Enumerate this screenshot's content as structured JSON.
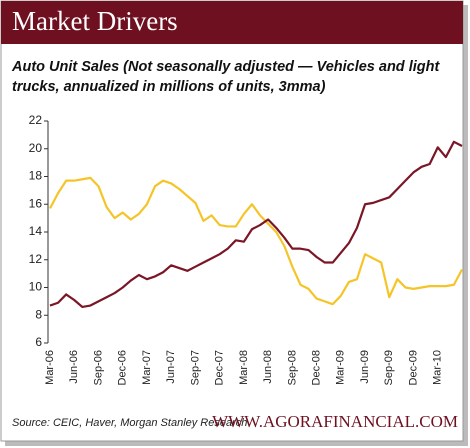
{
  "header": "Market Drivers",
  "chart_data": {
    "type": "line",
    "title": "Auto Unit Sales (Not seasonally adjusted — Vehicles and light trucks, annualized in millions of units, 3mma)",
    "source": "Source: CEIC, Haver, Morgan Stanley Research",
    "website": "WWW.AGORAFINANCIAL.COM",
    "categories": [
      "Mar-06",
      null,
      null,
      "Jun-06",
      null,
      null,
      "Sep-06",
      null,
      null,
      "Dec-06",
      null,
      null,
      "Mar-07",
      null,
      null,
      "Jun-07",
      null,
      null,
      "Sep-07",
      null,
      null,
      "Dec-07",
      null,
      null,
      "Mar-08",
      null,
      null,
      "Jun-08",
      null,
      null,
      "Sep-08",
      null,
      null,
      "Dec-08",
      null,
      null,
      "Mar-09",
      null,
      null,
      "Jun-09",
      null,
      null,
      "Sep-09",
      null,
      null,
      "Dec-09",
      null,
      null,
      "Mar-10",
      null,
      null,
      null
    ],
    "series": [
      {
        "color": "#f5c428",
        "values": [
          15.7,
          16.8,
          17.7,
          17.7,
          17.8,
          17.9,
          17.3,
          15.8,
          15.0,
          15.4,
          14.9,
          15.3,
          16.0,
          17.3,
          17.7,
          17.5,
          17.1,
          16.6,
          16.1,
          14.8,
          15.2,
          14.5,
          14.4,
          14.4,
          15.3,
          16.0,
          15.2,
          14.6,
          14.0,
          13.0,
          11.5,
          10.2,
          9.9,
          9.2,
          9.0,
          8.8,
          9.4,
          10.4,
          10.6,
          12.4,
          12.1,
          11.8,
          9.3,
          10.6,
          10.0,
          9.9,
          10.0,
          10.1,
          10.1,
          10.1,
          10.2,
          11.3
        ]
      },
      {
        "color": "#7a1626",
        "values": [
          8.7,
          8.9,
          9.5,
          9.1,
          8.6,
          8.7,
          9.0,
          9.3,
          9.6,
          10.0,
          10.5,
          10.9,
          10.6,
          10.8,
          11.1,
          11.6,
          11.4,
          11.2,
          11.5,
          11.8,
          12.1,
          12.4,
          12.8,
          13.4,
          13.3,
          14.2,
          14.5,
          14.9,
          14.3,
          13.6,
          12.8,
          12.8,
          12.7,
          12.2,
          11.8,
          11.8,
          12.5,
          13.2,
          14.3,
          16.0,
          16.1,
          16.3,
          16.5,
          17.1,
          17.7,
          18.3,
          18.7,
          18.9,
          20.1,
          19.4,
          20.5,
          20.2
        ]
      }
    ],
    "ylim": [
      6,
      22
    ],
    "yticks": [
      6,
      8,
      10,
      12,
      14,
      16,
      18,
      20,
      22
    ]
  }
}
